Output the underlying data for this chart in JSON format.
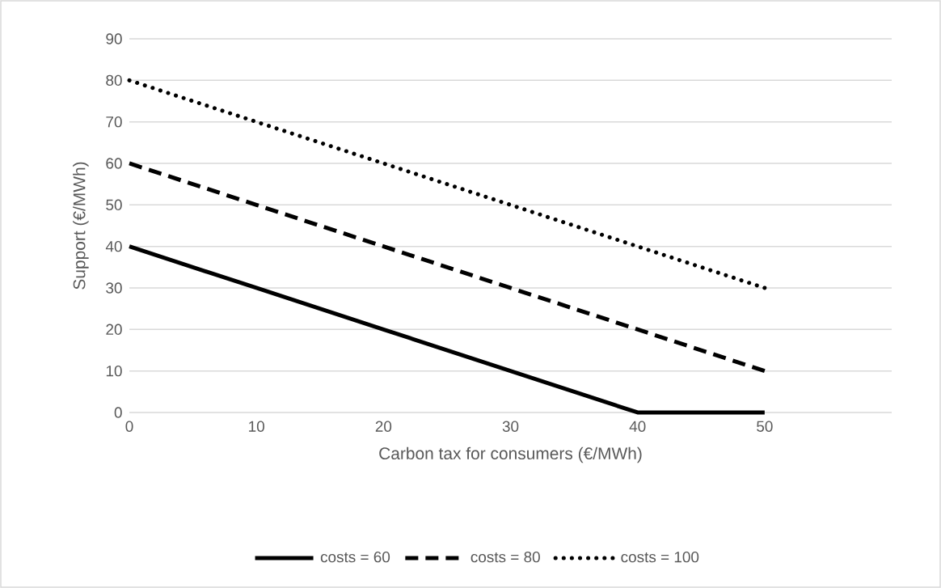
{
  "chart_data": {
    "type": "line",
    "xlabel": "Carbon tax for consumers (€/MWh)",
    "ylabel": "Support (€/MWh)",
    "x": [
      0,
      10,
      20,
      30,
      40,
      50
    ],
    "series": [
      {
        "name": "costs = 60",
        "color": "#000000",
        "line_style": "solid",
        "values": [
          40,
          30,
          20,
          10,
          0,
          0
        ]
      },
      {
        "name": "costs = 80",
        "color": "#000000",
        "line_style": "dashed",
        "values": [
          60,
          50,
          40,
          30,
          20,
          10
        ]
      },
      {
        "name": "costs = 100",
        "color": "#000000",
        "line_style": "dotted",
        "values": [
          80,
          70,
          60,
          50,
          40,
          30
        ]
      }
    ],
    "xlim": [
      0,
      60
    ],
    "xticks": [
      0,
      10,
      20,
      30,
      40,
      50
    ],
    "ylim": [
      0,
      90
    ],
    "yticks": [
      0,
      10,
      20,
      30,
      40,
      50,
      60,
      70,
      80,
      90
    ],
    "grid": "y",
    "legend": "bottom",
    "marker": "none"
  }
}
